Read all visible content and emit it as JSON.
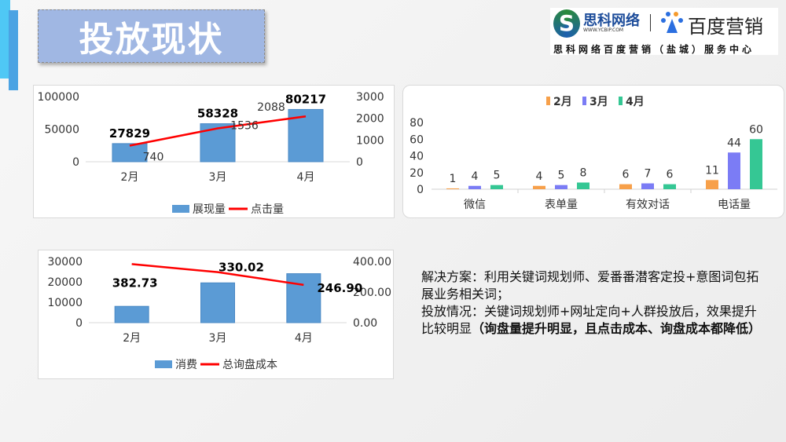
{
  "header": {
    "title": "投放现状"
  },
  "logo": {
    "brand1": "思科网络",
    "brand1_url": "WWW.YCBIP.COM",
    "brand2": "百度营销",
    "subtitle": "思科网络百度营销（盐城）服务中心"
  },
  "charts": {
    "impressions": {
      "type": "bar+line",
      "categories": [
        "2月",
        "3月",
        "4月"
      ],
      "series": [
        {
          "name": "展现量",
          "kind": "bar",
          "axis": "left",
          "values": [
            27829,
            58328,
            80217
          ],
          "color": "#5b9bd5"
        },
        {
          "name": "点击量",
          "kind": "line",
          "axis": "right",
          "values": [
            740,
            1536,
            2088
          ],
          "color": "#ff0000"
        }
      ],
      "left_ticks": [
        "0",
        "50000",
        "100000"
      ],
      "left_range": [
        0,
        100000
      ],
      "right_ticks": [
        "0",
        "1000",
        "2000",
        "3000"
      ],
      "right_range": [
        0,
        3000
      ],
      "legend": "bottom"
    },
    "conversions": {
      "type": "bar",
      "categories": [
        "微信",
        "表单量",
        "有效对话",
        "电话量"
      ],
      "series": [
        {
          "name": "2月",
          "values": [
            1,
            4,
            6,
            11
          ],
          "color": "#f7a04a"
        },
        {
          "name": "3月",
          "values": [
            4,
            5,
            7,
            44
          ],
          "color": "#7b7cf5"
        },
        {
          "name": "4月",
          "values": [
            5,
            8,
            6,
            60
          ],
          "color": "#35c794"
        }
      ],
      "left_ticks": [
        "0",
        "20",
        "40",
        "60",
        "80"
      ],
      "left_range": [
        0,
        80
      ],
      "legend": "top"
    },
    "cost": {
      "type": "bar+line",
      "categories": [
        "2月",
        "3月",
        "4月"
      ],
      "series": [
        {
          "name": "消费",
          "kind": "bar",
          "axis": "left",
          "values": [
            8000,
            19500,
            24000
          ],
          "color": "#5b9bd5"
        },
        {
          "name": "总询盘成本",
          "kind": "line",
          "axis": "right",
          "values": [
            382.73,
            330.02,
            246.9
          ],
          "labels": [
            "382.73",
            "330.02",
            "246.90"
          ],
          "color": "#ff0000"
        }
      ],
      "left_ticks": [
        "0",
        "10000",
        "20000",
        "30000"
      ],
      "left_range": [
        0,
        30000
      ],
      "right_ticks": [
        "0.00",
        "200.00",
        "400.00"
      ],
      "right_range": [
        0,
        400
      ],
      "legend": "bottom"
    }
  },
  "description": {
    "line1": "解决方案：利用关键词规划师、爱番番潜客定投+意图词包拓展业务相关词；",
    "line2": "投放情况：关键词规划师+网址定向+人群投放后，效果提升比较明显",
    "line2_bold": "（询盘量提升明显，且点击成本、询盘成本都降低）"
  }
}
